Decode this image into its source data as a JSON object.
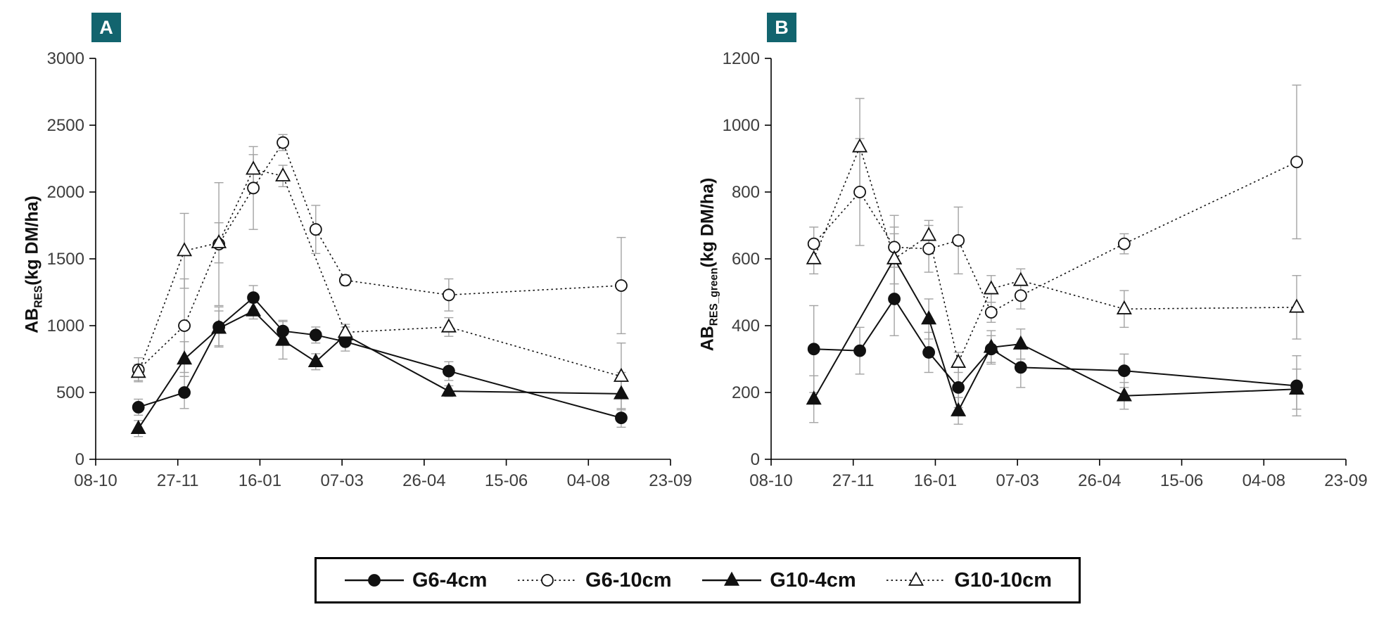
{
  "colors": {
    "badge_bg": "#12646e",
    "badge_text": "#ffffff",
    "series": "#111111",
    "error_bar": "#a3a3a3",
    "axis": "#000000",
    "tick_label": "#3d3d3d"
  },
  "legend": {
    "items": [
      {
        "label": "G6-4cm",
        "marker": "circle-filled",
        "line": "solid"
      },
      {
        "label": "G6-10cm",
        "marker": "circle-open",
        "line": "dotted"
      },
      {
        "label": "G10-4cm",
        "marker": "triangle-filled",
        "line": "solid"
      },
      {
        "label": "G10-10cm",
        "marker": "triangle-open",
        "line": "dotted"
      }
    ]
  },
  "chart_data": [
    {
      "type": "line",
      "panel_label": "A",
      "ylabel_prefix": "AB",
      "ylabel_sub": "RES",
      "ylabel_suffix": "(kg DM/ha)",
      "ylim": [
        0,
        3000
      ],
      "ytick_step": 500,
      "grid": false,
      "x_tick_labels": [
        "08-10",
        "27-11",
        "16-01",
        "07-03",
        "26-04",
        "15-06",
        "04-08",
        "23-09"
      ],
      "x_tick_days": [
        0,
        50,
        100,
        150,
        200,
        250,
        300,
        350
      ],
      "x_days": [
        26,
        54,
        75,
        96,
        114,
        134,
        152,
        215,
        320
      ],
      "series": [
        {
          "name": "G6-4cm",
          "marker": "circle-filled",
          "line": "solid",
          "values": [
            390,
            500,
            990,
            1210,
            960,
            930,
            880,
            660,
            310
          ],
          "errors": [
            60,
            120,
            150,
            90,
            80,
            60,
            70,
            70,
            70
          ]
        },
        {
          "name": "G6-10cm",
          "marker": "circle-open",
          "line": "dotted",
          "values": [
            670,
            1000,
            1610,
            2030,
            2370,
            1720,
            1340,
            1230,
            1300
          ],
          "errors": [
            90,
            350,
            460,
            310,
            60,
            180,
            40,
            120,
            360
          ]
        },
        {
          "name": "G10-4cm",
          "marker": "triangle-filled",
          "line": "solid",
          "values": [
            230,
            750,
            980,
            1110,
            890,
            730,
            930,
            510,
            490
          ],
          "errors": [
            60,
            130,
            130,
            60,
            140,
            60,
            60,
            40,
            160
          ]
        },
        {
          "name": "G10-10cm",
          "marker": "triangle-open",
          "line": "dotted",
          "values": [
            650,
            1560,
            1620,
            2170,
            2120,
            null,
            950,
            990,
            620
          ],
          "errors": [
            60,
            280,
            150,
            110,
            80,
            null,
            60,
            70,
            250
          ]
        }
      ]
    },
    {
      "type": "line",
      "panel_label": "B",
      "ylabel_prefix": "AB",
      "ylabel_sub": "RES_green",
      "ylabel_suffix": "(kg DM/ha)",
      "ylim": [
        0,
        1200
      ],
      "ytick_step": 200,
      "grid": false,
      "x_tick_labels": [
        "08-10",
        "27-11",
        "16-01",
        "07-03",
        "26-04",
        "15-06",
        "04-08",
        "23-09"
      ],
      "x_tick_days": [
        0,
        50,
        100,
        150,
        200,
        250,
        300,
        350
      ],
      "x_days": [
        26,
        54,
        75,
        96,
        114,
        134,
        152,
        215,
        320
      ],
      "series": [
        {
          "name": "G6-4cm",
          "marker": "circle-filled",
          "line": "solid",
          "values": [
            330,
            325,
            480,
            320,
            215,
            330,
            275,
            265,
            220
          ],
          "errors": [
            130,
            70,
            110,
            60,
            60,
            40,
            60,
            50,
            90
          ]
        },
        {
          "name": "G6-10cm",
          "marker": "circle-open",
          "line": "dotted",
          "values": [
            645,
            800,
            635,
            630,
            655,
            440,
            490,
            645,
            890
          ],
          "errors": [
            50,
            160,
            60,
            70,
            100,
            30,
            40,
            30,
            230
          ]
        },
        {
          "name": "G10-4cm",
          "marker": "triangle-filled",
          "line": "solid",
          "values": [
            180,
            null,
            600,
            420,
            145,
            335,
            345,
            190,
            210
          ],
          "errors": [
            70,
            null,
            130,
            60,
            40,
            50,
            45,
            40,
            60
          ]
        },
        {
          "name": "G10-10cm",
          "marker": "triangle-open",
          "line": "dotted",
          "values": [
            600,
            935,
            600,
            670,
            290,
            510,
            535,
            450,
            455
          ],
          "errors": [
            45,
            145,
            75,
            45,
            30,
            40,
            35,
            55,
            95
          ]
        }
      ]
    }
  ]
}
